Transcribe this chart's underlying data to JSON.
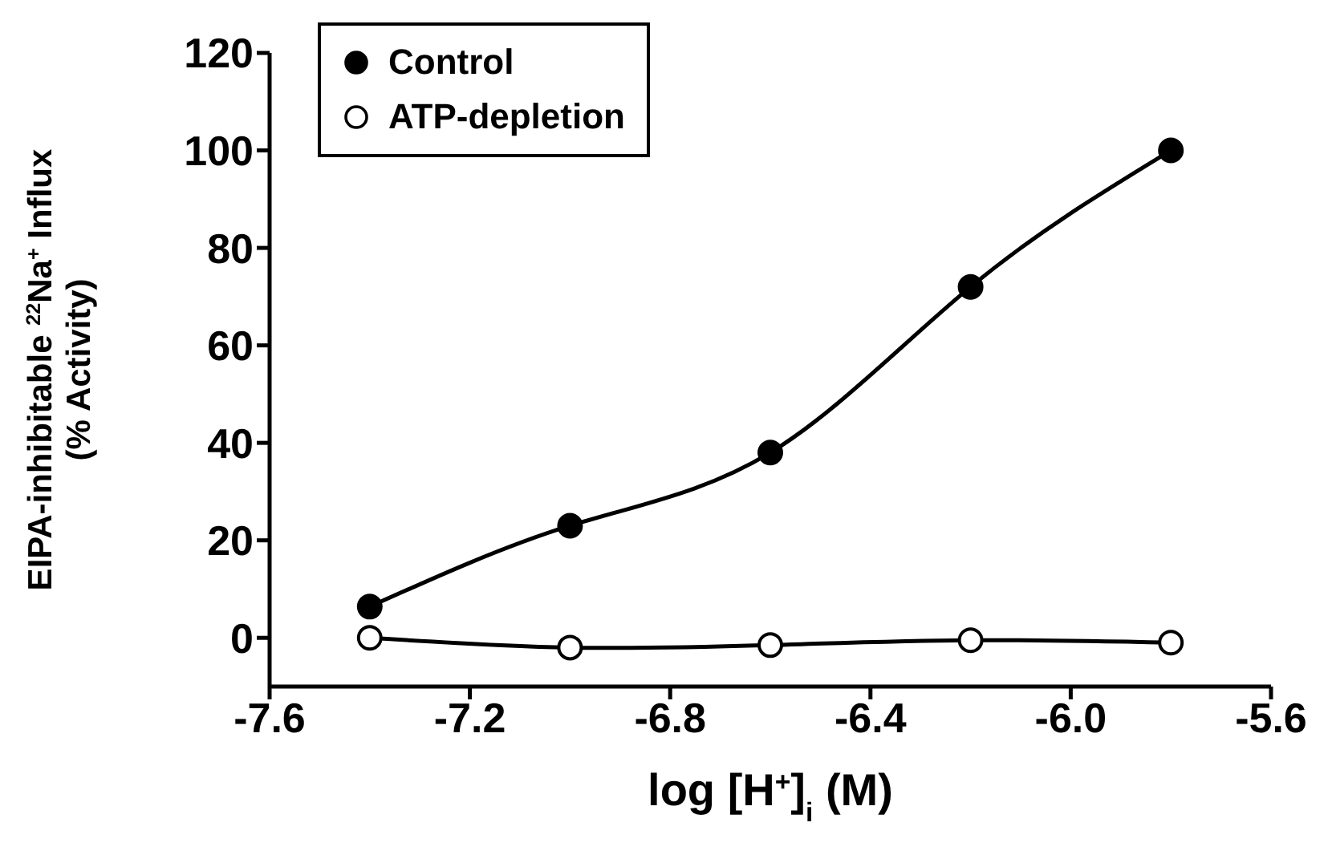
{
  "chart_data": {
    "type": "line",
    "xlabel": "log [H$^{+}$]$_{i}$ (M)",
    "ylabel": "EIPA-inhibitable $^{22}$Na$^{+}$ Influx\n(% Activity)",
    "x": [
      -7.4,
      -7.0,
      -6.6,
      -6.2,
      -5.8
    ],
    "series": [
      {
        "name": "Control",
        "color": "#000000",
        "values": [
          6.4,
          23,
          38,
          72,
          100
        ]
      },
      {
        "name": "ATP-depletion",
        "color": "#000000",
        "values": [
          0,
          -2,
          -1.5,
          -0.5,
          -1
        ]
      }
    ],
    "xlim": [
      -7.6,
      -5.6
    ],
    "xticks": [
      -7.6,
      -7.2,
      -6.8,
      -6.4,
      {
        "value": -6,
        "label": "-6.0"
      },
      -5.6
    ],
    "ylim": [
      -10,
      120
    ],
    "yticks": [
      0,
      20,
      40,
      60,
      80,
      100,
      120
    ],
    "grid": false,
    "legend": "top left",
    "marker": "circle",
    "line_style": "solid"
  }
}
